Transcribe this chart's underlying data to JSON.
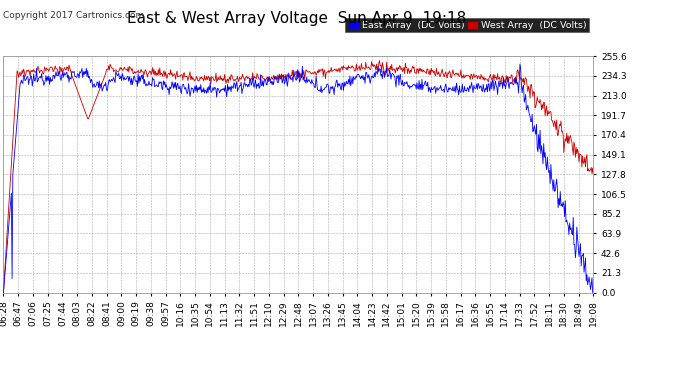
{
  "title": "East & West Array Voltage  Sun Apr 9  19:18",
  "copyright": "Copyright 2017 Cartronics.com",
  "legend_east": "East Array  (DC Volts)",
  "legend_west": "West Array  (DC Volts)",
  "east_color": "#0000ff",
  "west_color": "#cc0000",
  "ylim": [
    0.0,
    255.6
  ],
  "yticks": [
    0.0,
    21.3,
    42.6,
    63.9,
    85.2,
    106.5,
    127.8,
    149.1,
    170.4,
    191.7,
    213.0,
    234.3,
    255.6
  ],
  "bg_color": "#ffffff",
  "plot_bg_color": "#ffffff",
  "grid_color": "#aaaaaa",
  "title_fontsize": 11,
  "tick_label_fontsize": 6.5,
  "x_tick_labels": [
    "06:28",
    "06:47",
    "07:06",
    "07:25",
    "07:44",
    "08:03",
    "08:22",
    "08:41",
    "09:00",
    "09:19",
    "09:38",
    "09:57",
    "10:16",
    "10:35",
    "10:54",
    "11:13",
    "11:32",
    "11:51",
    "12:10",
    "12:29",
    "12:48",
    "13:07",
    "13:26",
    "13:45",
    "14:04",
    "14:23",
    "14:42",
    "15:01",
    "15:20",
    "15:39",
    "15:58",
    "16:17",
    "16:36",
    "16:55",
    "17:14",
    "17:33",
    "17:52",
    "18:11",
    "18:30",
    "18:49",
    "19:08"
  ],
  "num_points": 820
}
